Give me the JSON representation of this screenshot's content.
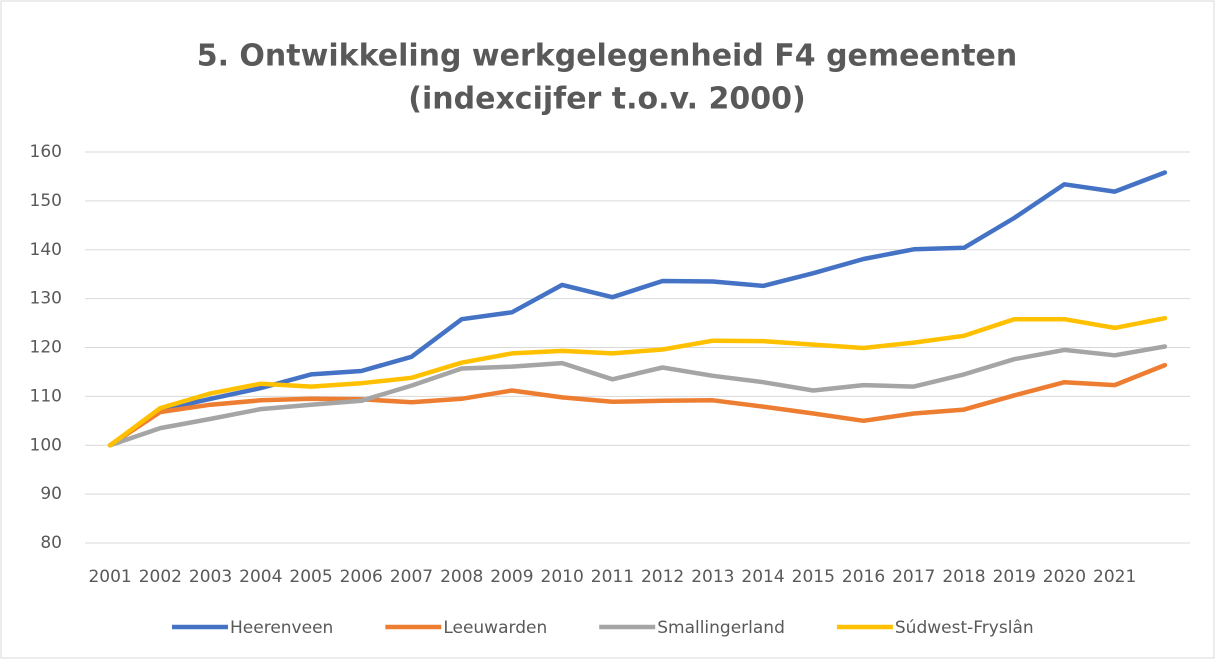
{
  "chart_data": {
    "type": "line",
    "title": "5. Ontwikkeling werkgelegenheid F4 gemeenten",
    "subtitle": "(indexcijfer t.o.v. 2000)",
    "categories": [
      "2001",
      "2002",
      "2003",
      "2004",
      "2005",
      "2006",
      "2007",
      "2008",
      "2009",
      "2010",
      "2011",
      "2012",
      "2013",
      "2014",
      "2015",
      "2016",
      "2017",
      "2018",
      "2019",
      "2020",
      "2021",
      null
    ],
    "series": [
      {
        "name": "Heerenveen",
        "color": "#4472c4",
        "values": [
          100,
          107.2,
          109.5,
          111.7,
          114.5,
          115.2,
          118.1,
          125.8,
          127.2,
          132.8,
          130.3,
          133.6,
          133.5,
          132.6,
          135.2,
          138.1,
          140.1,
          140.4,
          146.5,
          153.4,
          151.9,
          155.8
        ]
      },
      {
        "name": "Leeuwarden",
        "color": "#ed7d31",
        "values": [
          100,
          106.8,
          108.3,
          109.2,
          109.5,
          109.4,
          108.8,
          109.5,
          111.2,
          109.8,
          108.9,
          109.1,
          109.2,
          107.9,
          106.5,
          105,
          106.5,
          107.3,
          110.2,
          112.9,
          112.3,
          116.4
        ]
      },
      {
        "name": "Smallingerland",
        "color": "#a5a5a5",
        "values": [
          100,
          103.5,
          105.4,
          107.4,
          108.3,
          109.1,
          112.2,
          115.7,
          116.1,
          116.8,
          113.5,
          115.9,
          114.2,
          112.9,
          111.2,
          112.3,
          112,
          114.5,
          117.6,
          119.5,
          118.4,
          120.2
        ]
      },
      {
        "name": "Súdwest-Fryslân",
        "color": "#ffc000",
        "values": [
          100,
          107.6,
          110.6,
          112.6,
          112,
          112.7,
          113.8,
          116.9,
          118.8,
          119.3,
          118.8,
          119.6,
          121.4,
          121.3,
          120.6,
          119.9,
          121,
          122.4,
          125.8,
          125.8,
          124,
          126
        ]
      }
    ],
    "ylim": [
      80,
      160
    ],
    "yticks": [
      80,
      90,
      100,
      110,
      120,
      130,
      140,
      150,
      160
    ],
    "grid": true,
    "legend": "bottom"
  }
}
